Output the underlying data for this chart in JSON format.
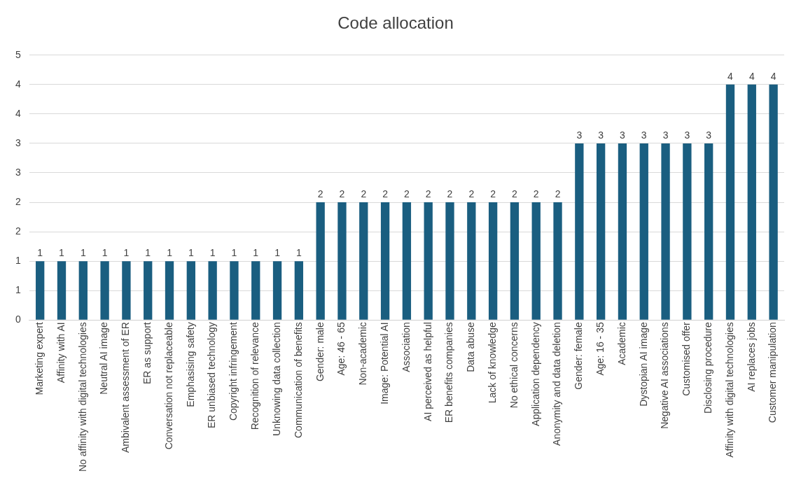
{
  "chart_data": {
    "type": "bar",
    "title": "Code allocation",
    "categories": [
      "Marketing expert",
      "Affinity with AI",
      "No affinity with digital technologies",
      "Neutral AI image",
      "Ambivalent assessment of ER",
      "ER as support",
      "Conversation not replaceable",
      "Emphasising safety",
      "ER unbiased technology",
      "Copyright infringement",
      "Recognition of relevance",
      "Unknowing data collection",
      "Communication of benefits",
      "Gender: male",
      "Age: 46 - 65",
      "Non-academic",
      "Image: Potential AI",
      "Association",
      "AI perceived as helpful",
      "ER benefits companies",
      "Data abuse",
      "Lack of knowledge",
      "No ethical concerns",
      "Application dependency",
      "Anonymity and data deletion",
      "Gender: female",
      "Age: 16 - 35",
      "Academic",
      "Dystopian AI image",
      "Negative AI associations",
      "Customised offer",
      "Disclosing procedure",
      "Affinity with digital technologies",
      "AI replaces jobs",
      "Customer manipulation"
    ],
    "values": [
      1,
      1,
      1,
      1,
      1,
      1,
      1,
      1,
      1,
      1,
      1,
      1,
      1,
      2,
      2,
      2,
      2,
      2,
      2,
      2,
      2,
      2,
      2,
      2,
      2,
      3,
      3,
      3,
      3,
      3,
      3,
      3,
      4,
      4,
      4
    ],
    "color": "#1a5e80",
    "ylim": [
      0,
      4.5
    ],
    "yticks": [
      0,
      {
        "value": 0.5,
        "label": "1"
      },
      1,
      {
        "value": 1.5,
        "label": "2"
      },
      2,
      {
        "value": 2.5,
        "label": "3"
      },
      3,
      {
        "value": 3.5,
        "label": "4"
      },
      4,
      {
        "value": 4.5,
        "label": "5"
      }
    ],
    "grid": "y",
    "data_labels": true
  }
}
